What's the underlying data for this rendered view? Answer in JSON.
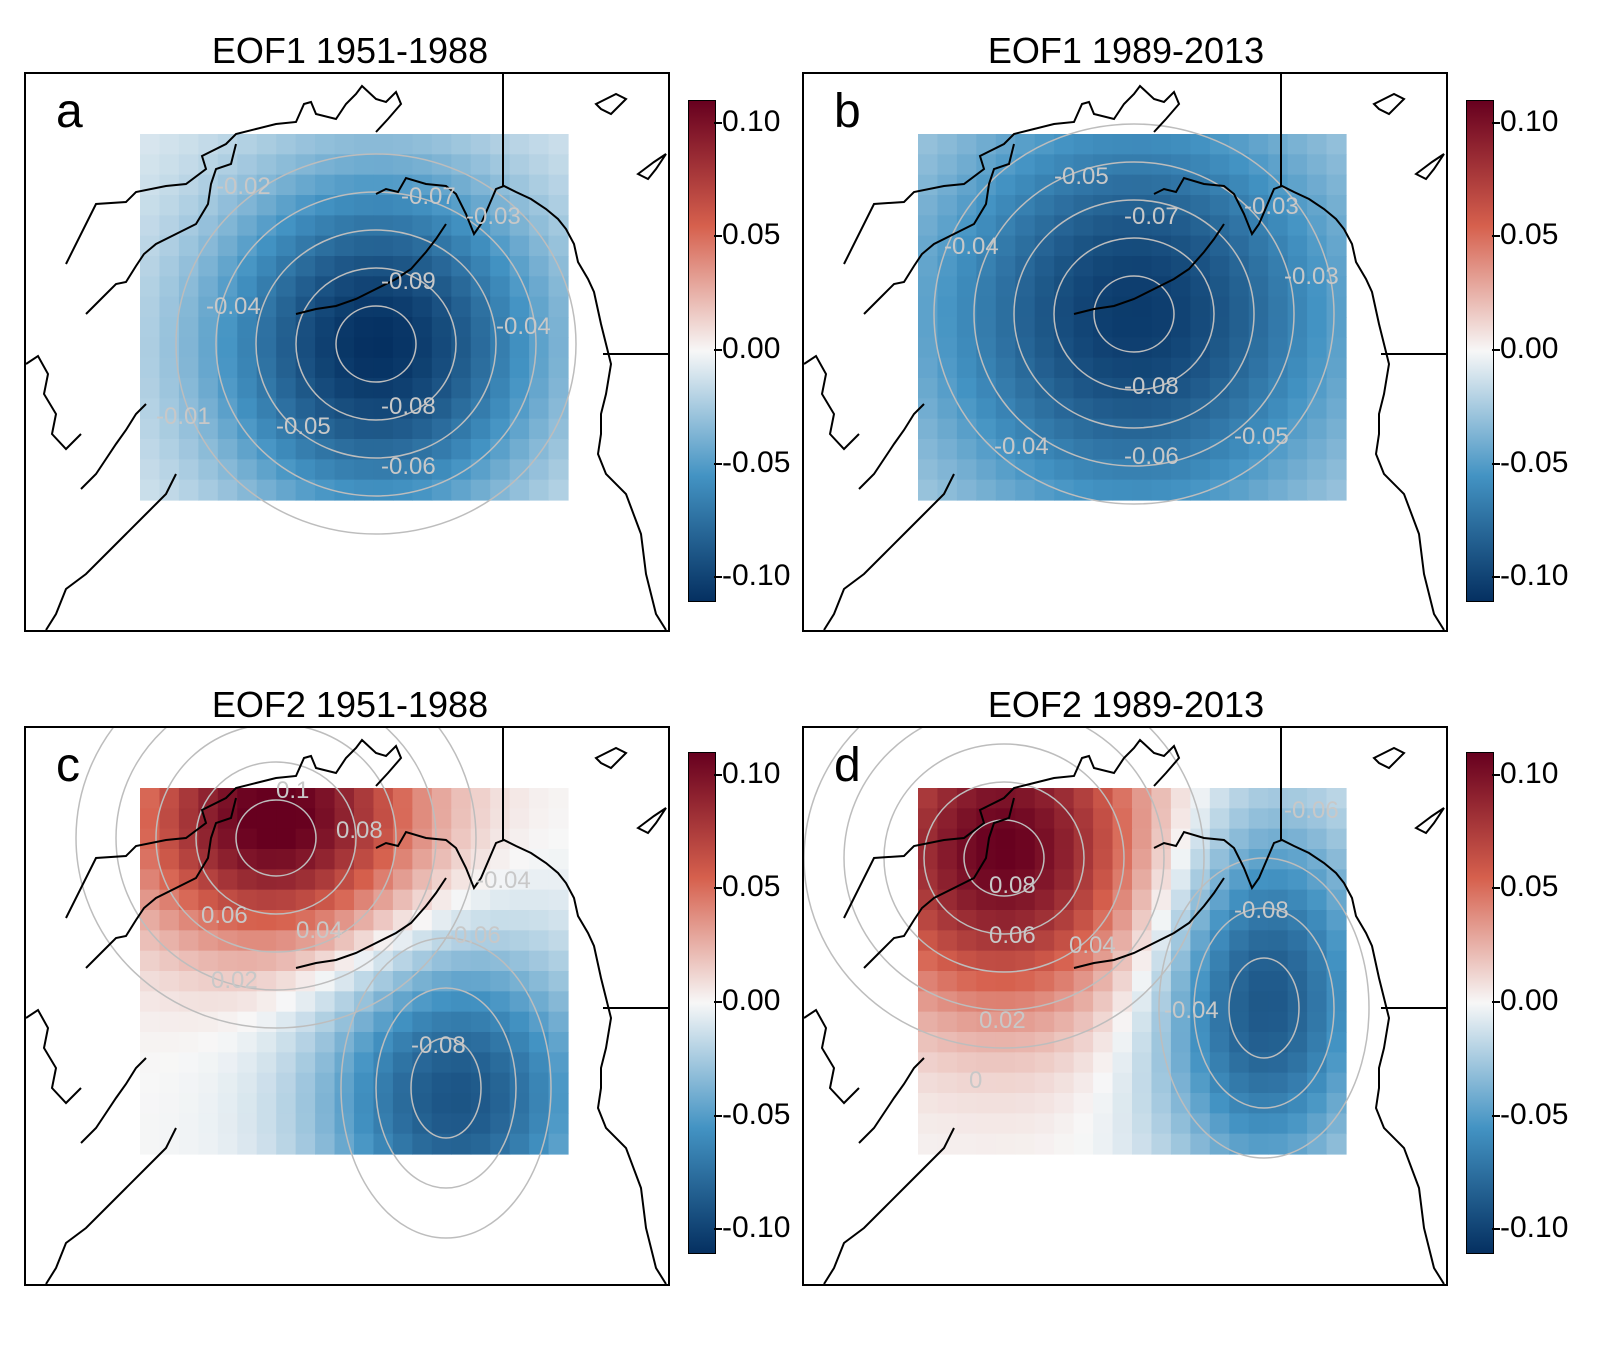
{
  "panels": [
    {
      "id": "a",
      "title": "EOF1 1951-1988",
      "letter": "a",
      "contour_labels": [
        "-0.07",
        "-0.09",
        "-0.08",
        "-0.06",
        "-0.05",
        "-0.01",
        "-0.04",
        "-0.03",
        "-0.02",
        "-0.04"
      ]
    },
    {
      "id": "b",
      "title": "EOF1 1989-2013",
      "letter": "b",
      "contour_labels": [
        "-0.05",
        "-0.07",
        "-0.08",
        "-0.06",
        "-0.05",
        "-0.04",
        "-0.04",
        "-0.03",
        "-0.03"
      ]
    },
    {
      "id": "c",
      "title": "EOF2 1951-1988",
      "letter": "c",
      "contour_labels": [
        "0.1",
        "0.08",
        "0.06",
        "0.04",
        "0.02",
        "-0.04",
        "-0.06",
        "-0.08"
      ]
    },
    {
      "id": "d",
      "title": "EOF2 1989-2013",
      "letter": "d",
      "contour_labels": [
        "0.08",
        "0.06",
        "0.04",
        "0.02",
        "0",
        "-0.06",
        "-0.08",
        "-0.04"
      ]
    }
  ],
  "colorbar": {
    "ticks": [
      "0.10",
      "0.05",
      "0.00",
      "-0.05",
      "-0.10"
    ],
    "colors": {
      "high": "#67001f",
      "mid_high": "#d6604d",
      "zero": "#f7f7f7",
      "mid_low": "#4393c3",
      "low": "#053061"
    }
  }
}
